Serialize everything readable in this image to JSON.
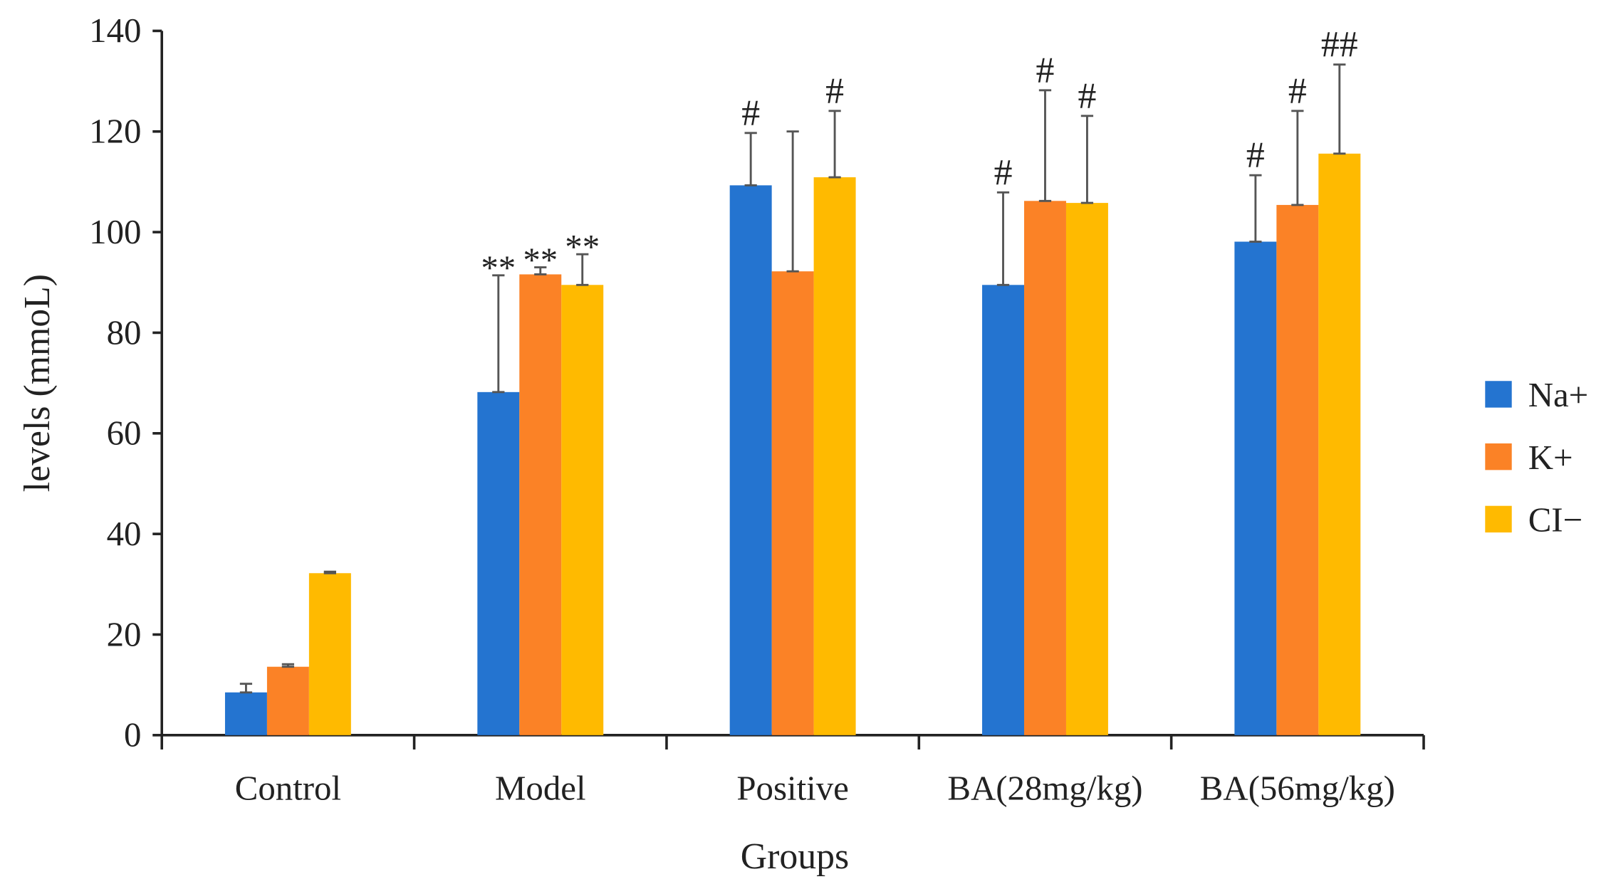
{
  "chart_data": {
    "type": "bar",
    "title": "",
    "xlabel": "Groups",
    "ylabel": "levels (mmoL)",
    "ylim": [
      0,
      140
    ],
    "yticks": [
      0,
      20,
      40,
      60,
      80,
      100,
      120,
      140
    ],
    "grid": false,
    "legend_position": "right",
    "categories": [
      "Control",
      "Model",
      "Positive",
      "BA(28mg/kg)",
      "BA(56mg/kg)"
    ],
    "series": [
      {
        "name": "Na+",
        "color": "#2474D0",
        "values": [
          8.5,
          68.2,
          109.3,
          89.5,
          98.1
        ],
        "error_upper": [
          10.2,
          91.4,
          119.7,
          107.9,
          111.3
        ],
        "annotations": [
          "",
          "**",
          "#",
          "#",
          "#"
        ]
      },
      {
        "name": "K+",
        "color": "#FB8226",
        "values": [
          13.6,
          91.6,
          92.2,
          106.2,
          105.4
        ],
        "error_upper": [
          14.1,
          93.0,
          120.0,
          128.2,
          124.1
        ],
        "annotations": [
          "",
          "**",
          "",
          "#",
          "#"
        ]
      },
      {
        "name": "CI−",
        "color": "#FFBA00",
        "values": [
          32.2,
          89.5,
          110.9,
          105.8,
          115.6
        ],
        "error_upper": [
          32.5,
          95.6,
          124.1,
          123.1,
          133.3
        ],
        "annotations": [
          "",
          "**",
          "#",
          "#",
          "##"
        ]
      }
    ]
  }
}
